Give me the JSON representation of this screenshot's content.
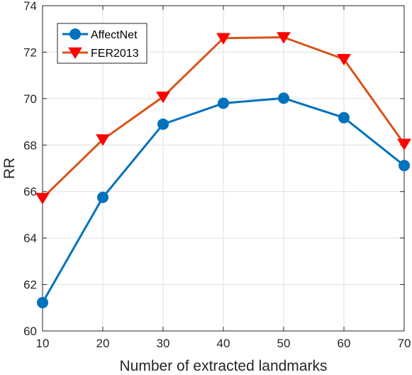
{
  "chart_data": {
    "type": "line",
    "title": "",
    "xlabel": "Number of extracted landmarks",
    "ylabel": "RR",
    "x": [
      10,
      20,
      30,
      40,
      50,
      60,
      70
    ],
    "xlim": [
      10,
      70
    ],
    "ylim": [
      60,
      74
    ],
    "xticks": [
      "10",
      "20",
      "30",
      "40",
      "50",
      "60",
      "70"
    ],
    "yticks": [
      "60",
      "62",
      "64",
      "66",
      "68",
      "70",
      "72",
      "74"
    ],
    "grid": true,
    "legend_position": "top-left",
    "series": [
      {
        "name": "AffectNet",
        "values": [
          61.22,
          65.75,
          68.9,
          69.8,
          70.02,
          69.18,
          67.12
        ],
        "color": "#0072bd",
        "marker": "circle"
      },
      {
        "name": "FER2013",
        "values": [
          65.72,
          68.24,
          70.08,
          72.6,
          72.64,
          71.7,
          68.05
        ],
        "color": "#d95319",
        "marker_color": "#ff0000",
        "marker": "triangle-down"
      }
    ]
  }
}
